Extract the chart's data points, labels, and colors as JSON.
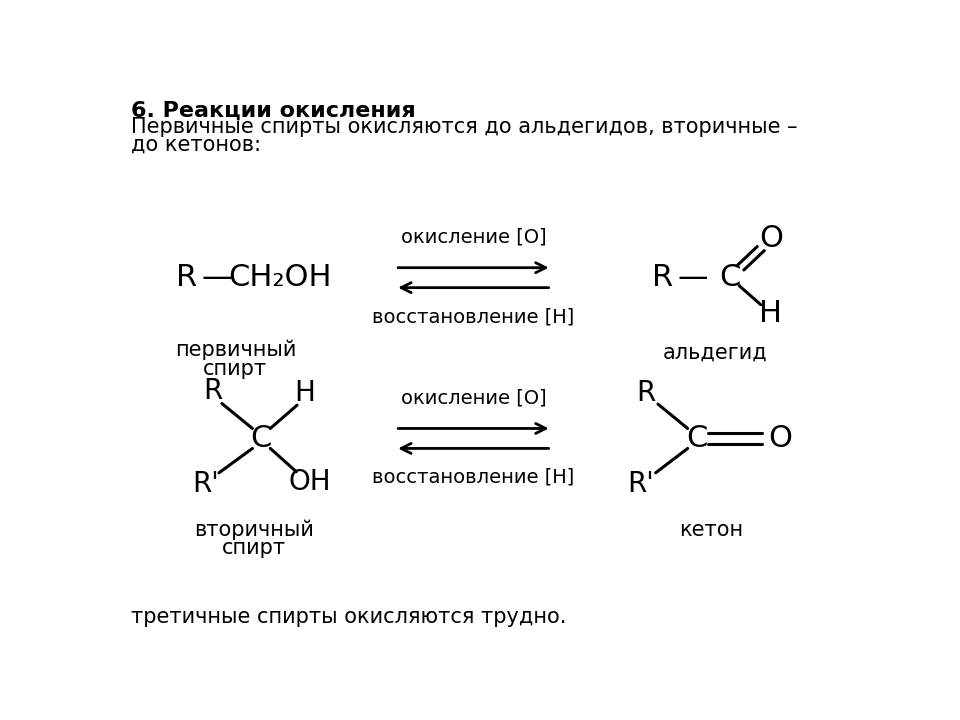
{
  "title_bold": "6. Реакции окисления",
  "subtitle_line1": "Первичные спирты окисляются до альдегидов, вторичные –",
  "subtitle_line2": "до кетонов:",
  "bg_color": "#ffffff",
  "text_color": "#000000",
  "footer": "третичные спирты окисляются трудно.",
  "r1_left": "R—CH₂OH",
  "r1_left_label1": "первичный",
  "r1_left_label2": "спирт",
  "r1_arrow_top": "окисление [O]",
  "r1_arrow_bot": "восстановление [H]",
  "r1_right_label": "альдегид",
  "r2_arrow_top": "окисление [O]",
  "r2_arrow_bot": "восстановление [H]",
  "r2_left_label1": "вторичный",
  "r2_left_label2": "спирт",
  "r2_right_label": "кетон",
  "fs_title": 16,
  "fs_body": 15,
  "fs_formula": 22,
  "fs_arrow_label": 14
}
